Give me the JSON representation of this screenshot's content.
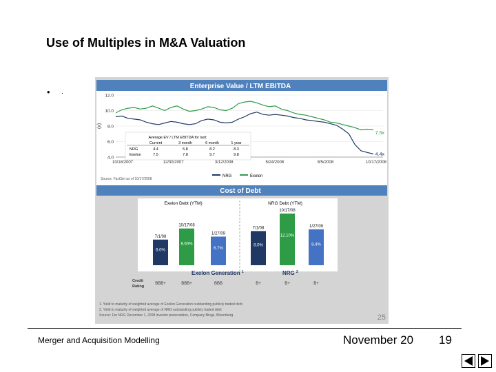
{
  "slide": {
    "title": "Use of Multiples in M&A Valuation",
    "bullet_symbol": "•",
    "bullet_text": ".",
    "footer_left": "Merger and Acquisition Modelling",
    "footer_date": "November 20",
    "footer_page": "19",
    "slide_number": "25"
  },
  "colors": {
    "navy": "#1f3864",
    "green": "#2e9b46",
    "blue": "#4472c4",
    "panel": "#d4d4d4",
    "header_blue": "#4f81bd"
  },
  "chart_data": [
    {
      "type": "line",
      "title": "Enterprise Value / LTM EBITDA",
      "ylabel": "(x)",
      "ylim": [
        4.0,
        12.0
      ],
      "yticks": [
        "12.0",
        "10.0",
        "8.0",
        "6.0",
        "4.0"
      ],
      "xticks": [
        "10/18/2007",
        "12/30/2007",
        "3/12/2008",
        "5/24/2008",
        "8/5/2008",
        "10/17/2008"
      ],
      "series": [
        {
          "name": "NRG",
          "end_label": "4.4x",
          "values": [
            9.2,
            9.3,
            9.0,
            8.9,
            8.8,
            8.5,
            8.3,
            8.2,
            8.4,
            8.6,
            8.5,
            8.3,
            8.2,
            8.3,
            8.7,
            8.9,
            8.8,
            8.5,
            8.4,
            8.5,
            8.9,
            9.2,
            9.6,
            9.8,
            9.5,
            9.4,
            9.5,
            9.4,
            9.3,
            9.1,
            9.0,
            8.8,
            8.7,
            8.6,
            8.5,
            8.3,
            8.1,
            7.6,
            7.0,
            5.6,
            4.8,
            4.6,
            4.4
          ]
        },
        {
          "name": "Exelon",
          "end_label": "7.5x",
          "values": [
            9.7,
            10.1,
            10.3,
            10.4,
            10.2,
            10.3,
            10.6,
            10.3,
            10.0,
            10.4,
            10.6,
            10.2,
            9.9,
            10.0,
            10.2,
            10.5,
            10.4,
            10.1,
            10.0,
            10.3,
            10.9,
            11.1,
            11.2,
            11.0,
            10.7,
            10.5,
            10.6,
            10.2,
            10.0,
            9.7,
            9.5,
            9.4,
            9.2,
            9.0,
            8.8,
            8.5,
            8.4,
            8.2,
            8.0,
            7.8,
            7.5,
            7.6,
            7.5
          ]
        }
      ],
      "inset_table": {
        "title": "Average EV / LTM EBITDA for last:",
        "headers": [
          "",
          "Current",
          "3 month",
          "6 month",
          "1 year"
        ],
        "rows": [
          [
            "NRG",
            "4.4",
            "5.8",
            "8.2",
            "8.3"
          ],
          [
            "Exelon",
            "7.5",
            "7.8",
            "9.7",
            "9.8"
          ]
        ]
      },
      "source": "Source: FactSet as of 10/17/2008"
    },
    {
      "type": "bar",
      "title": "Cost of Debt",
      "groups": [
        {
          "name": "Exelon Generation",
          "superscript": "1",
          "subtitle": "Exelon Debt (YTM)",
          "bars": [
            {
              "date": "7/1/08",
              "value": 6.0,
              "label": "6.0%",
              "credit_rating": "BBB+"
            },
            {
              "date": "10/17/08",
              "value": 8.6,
              "label": "8.60%",
              "credit_rating": "BBB+"
            },
            {
              "date": "1/27/09",
              "value": 6.7,
              "label": "6.7%",
              "credit_rating": "BBB"
            }
          ]
        },
        {
          "name": "NRG",
          "superscript": "2",
          "subtitle": "NRG Debt (YTM)",
          "bars": [
            {
              "date": "7/1/08",
              "value": 8.0,
              "label": "8.0%",
              "credit_rating": "B+"
            },
            {
              "date": "10/17/08",
              "value": 12.1,
              "label": "12.10%",
              "credit_rating": "B+"
            },
            {
              "date": "1/27/09",
              "value": 8.4,
              "label": "8.4%",
              "credit_rating": "B+"
            }
          ]
        }
      ],
      "row_label_line1": "Credit",
      "row_label_line2": "Rating",
      "footnotes": [
        "1.   Yield to maturity of weighted average of Exelon Generation outstanding publicly traded debt",
        "2.   Yield to maturity of weighted average of NRG outstanding publicly traded debt",
        "Source: For NRG December 1, 2008 investor presentation, Company filings, Bloomberg"
      ]
    }
  ]
}
